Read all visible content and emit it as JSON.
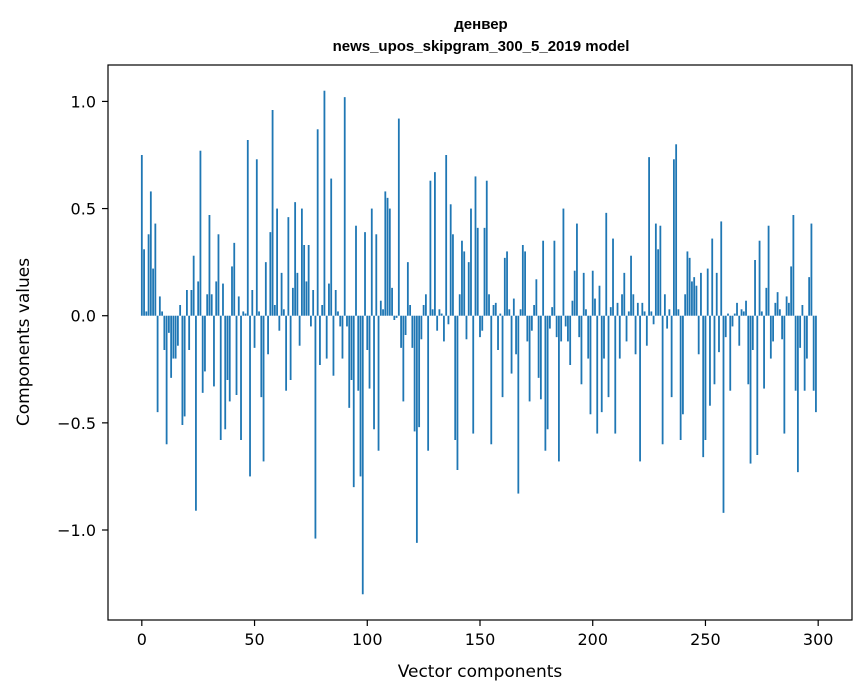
{
  "chart_data": {
    "type": "bar",
    "title": "денвер",
    "subtitle": "news_upos_skipgram_300_5_2019 model",
    "xlabel": "Vector components",
    "ylabel": "Components values",
    "xlim": [
      -15,
      315
    ],
    "ylim": [
      -1.42,
      1.17
    ],
    "xticks": [
      0,
      50,
      100,
      150,
      200,
      250,
      300
    ],
    "xtick_labels": [
      "0",
      "50",
      "100",
      "150",
      "200",
      "250",
      "300"
    ],
    "yticks": [
      -1.0,
      -0.5,
      0.0,
      0.5,
      1.0
    ],
    "ytick_labels": [
      "−1.0",
      "−0.5",
      "0.0",
      "0.5",
      "1.0"
    ],
    "grid": false,
    "bar_color": "#1f77b4",
    "values": [
      0.75,
      0.31,
      0.02,
      0.38,
      0.58,
      0.22,
      0.43,
      -0.45,
      0.09,
      0.02,
      -0.16,
      -0.6,
      -0.08,
      -0.29,
      -0.2,
      -0.2,
      -0.14,
      0.05,
      -0.51,
      -0.47,
      0.12,
      -0.16,
      0.12,
      0.28,
      -0.91,
      0.16,
      0.77,
      -0.36,
      -0.26,
      0.1,
      0.47,
      0.1,
      -0.33,
      0.16,
      0.38,
      -0.58,
      0.15,
      -0.53,
      -0.3,
      -0.4,
      0.23,
      0.34,
      -0.37,
      0.09,
      -0.58,
      0.02,
      0.01,
      0.82,
      -0.75,
      0.12,
      -0.15,
      0.73,
      0.02,
      -0.38,
      -0.68,
      0.25,
      -0.18,
      0.39,
      0.96,
      0.05,
      0.5,
      -0.07,
      0.2,
      0.03,
      -0.35,
      0.46,
      -0.3,
      0.13,
      0.53,
      0.2,
      -0.14,
      0.5,
      0.33,
      0.16,
      0.33,
      -0.05,
      0.12,
      -1.04,
      0.87,
      -0.23,
      0.05,
      1.05,
      -0.2,
      0.15,
      0.64,
      -0.28,
      0.12,
      0.02,
      -0.05,
      -0.2,
      1.02,
      -0.05,
      -0.43,
      -0.3,
      -0.8,
      0.42,
      -0.35,
      -0.75,
      -1.3,
      0.39,
      -0.16,
      -0.34,
      0.5,
      -0.53,
      0.38,
      -0.63,
      0.07,
      0.03,
      0.58,
      0.55,
      0.5,
      0.13,
      -0.02,
      -0.01,
      0.92,
      -0.15,
      -0.4,
      -0.09,
      0.25,
      0.05,
      -0.15,
      -0.54,
      -1.06,
      -0.52,
      -0.11,
      0.05,
      0.1,
      -0.63,
      0.63,
      0.03,
      0.67,
      -0.07,
      0.03,
      0.01,
      -0.12,
      0.75,
      -0.04,
      0.52,
      0.38,
      -0.58,
      -0.72,
      0.1,
      0.35,
      0.3,
      -0.11,
      0.25,
      0.5,
      -0.55,
      0.65,
      0.41,
      -0.1,
      -0.07,
      0.41,
      0.63,
      0.1,
      -0.6,
      0.05,
      0.06,
      -0.16,
      0.01,
      -0.38,
      0.27,
      0.3,
      0.03,
      -0.27,
      0.08,
      -0.18,
      -0.83,
      0.03,
      0.33,
      0.3,
      -0.12,
      -0.4,
      -0.07,
      0.05,
      0.17,
      -0.29,
      -0.39,
      0.35,
      -0.63,
      -0.53,
      -0.06,
      0.04,
      0.35,
      -0.1,
      -0.68,
      -0.12,
      0.5,
      -0.05,
      -0.12,
      -0.23,
      0.07,
      0.21,
      0.43,
      -0.1,
      -0.32,
      0.2,
      0.03,
      -0.2,
      -0.46,
      0.21,
      0.08,
      -0.55,
      0.14,
      -0.45,
      -0.2,
      0.48,
      -0.38,
      0.04,
      0.36,
      -0.55,
      0.06,
      -0.2,
      0.1,
      0.2,
      -0.12,
      0.02,
      0.28,
      0.1,
      -0.18,
      0.06,
      -0.68,
      0.06,
      0.02,
      -0.14,
      0.74,
      0.02,
      -0.04,
      0.43,
      0.31,
      0.42,
      -0.6,
      0.1,
      -0.06,
      0.03,
      -0.38,
      0.73,
      0.8,
      0.03,
      -0.58,
      -0.46,
      0.1,
      0.3,
      0.27,
      0.16,
      0.18,
      0.14,
      -0.18,
      0.2,
      -0.66,
      -0.58,
      0.22,
      -0.42,
      0.36,
      -0.32,
      0.2,
      -0.17,
      0.44,
      -0.92,
      -0.1,
      0.01,
      -0.35,
      -0.05,
      0.01,
      0.06,
      -0.14,
      0.03,
      0.02,
      0.07,
      -0.32,
      -0.69,
      -0.16,
      0.26,
      -0.65,
      0.35,
      0.02,
      -0.34,
      0.13,
      0.42,
      -0.2,
      -0.12,
      0.06,
      0.11,
      0.03,
      -0.11,
      -0.55,
      0.09,
      0.06,
      0.23,
      0.47,
      -0.35,
      -0.73,
      -0.15,
      0.05,
      -0.35,
      -0.2,
      0.18,
      0.43,
      -0.35,
      -0.45
    ]
  }
}
